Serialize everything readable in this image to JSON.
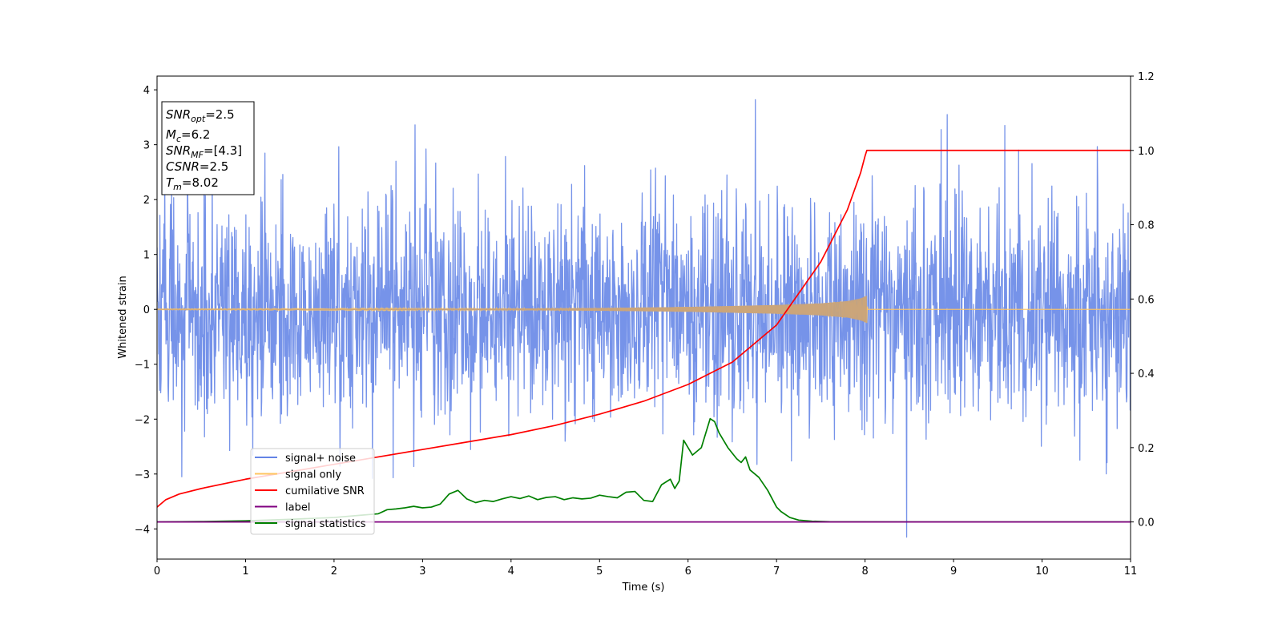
{
  "chart_data": {
    "type": "line",
    "xlabel": "Time (s)",
    "ylabel": "Whitened strain",
    "xlim": [
      0,
      11
    ],
    "ylim": [
      -4.55,
      4.25
    ],
    "y2lim": [
      -0.1,
      1.2
    ],
    "x_ticks": [
      "0",
      "1",
      "2",
      "3",
      "4",
      "5",
      "6",
      "7",
      "8",
      "9",
      "10",
      "11"
    ],
    "y_ticks": [
      "4",
      "3",
      "2",
      "1",
      "0",
      "−1",
      "−2",
      "−3",
      "−4"
    ],
    "y2_ticks": [
      "1.2",
      "1.0",
      "0.8",
      "0.6",
      "0.4",
      "0.2",
      "0.0"
    ],
    "grid": false,
    "legend_position": "lower-left",
    "annotation_box": {
      "lines": [
        {
          "base": "SNR",
          "sub": "opt",
          "rest": "=2.5"
        },
        {
          "base": "M",
          "sub": "c",
          "rest": "=6.2"
        },
        {
          "base": "SNR",
          "sub": "MF",
          "rest": "=[4.3]"
        },
        {
          "base": "CSNR",
          "sub": "",
          "rest": "=2.5"
        },
        {
          "base": "T",
          "sub": "m",
          "rest": "=8.02"
        }
      ]
    },
    "series": [
      {
        "name": "signal+ noise",
        "axis": "left",
        "color": "#4169E1",
        "opacity": 0.72,
        "description": "whitened noise with unit variance plus the chirp signal, sampled densely over 0–11 s",
        "noise_std": 1.0,
        "peak_max": 3.82,
        "peak_min": -4.15,
        "notable_spikes": [
          {
            "x": 6.76,
            "y": 3.82
          },
          {
            "x": 8.93,
            "y": 3.55
          },
          {
            "x": 9.58,
            "y": 3.35
          },
          {
            "x": 8.47,
            "y": -4.15
          },
          {
            "x": 0.28,
            "y": -3.05
          }
        ]
      },
      {
        "name": "signal only",
        "axis": "left",
        "color": "#FFC560",
        "description": "chirp signal growing in amplitude until merger time",
        "t_merger": 8.02,
        "amplitude_envelope": {
          "x": [
            0,
            2,
            4,
            5,
            6,
            7,
            7.5,
            7.8,
            7.95,
            8.02,
            8.03,
            11
          ],
          "y": [
            0.005,
            0.008,
            0.015,
            0.025,
            0.045,
            0.08,
            0.11,
            0.15,
            0.2,
            0.25,
            0,
            0
          ]
        }
      },
      {
        "name": "cumilative SNR",
        "axis": "right",
        "color": "#FF0000",
        "x": [
          0,
          0.1,
          0.25,
          0.5,
          1,
          1.5,
          2,
          2.5,
          3,
          3.5,
          4,
          4.5,
          5,
          5.5,
          6,
          6.5,
          7,
          7.5,
          7.8,
          7.95,
          8.0,
          8.02,
          8.5,
          9,
          10,
          11
        ],
        "y": [
          0.04,
          0.06,
          0.075,
          0.09,
          0.115,
          0.135,
          0.155,
          0.175,
          0.195,
          0.215,
          0.235,
          0.26,
          0.29,
          0.325,
          0.37,
          0.43,
          0.53,
          0.7,
          0.84,
          0.94,
          0.985,
          1.0,
          1.0,
          1.0,
          1.0,
          1.0
        ]
      },
      {
        "name": "label",
        "axis": "right",
        "color": "#800080",
        "x": [
          0,
          11
        ],
        "y": [
          0,
          0
        ]
      },
      {
        "name": "signal statistics",
        "axis": "right",
        "color": "#008000",
        "x": [
          0,
          0.5,
          1,
          1.5,
          2,
          2.3,
          2.5,
          2.6,
          2.7,
          2.8,
          2.9,
          3.0,
          3.1,
          3.2,
          3.3,
          3.4,
          3.5,
          3.6,
          3.7,
          3.8,
          3.9,
          4.0,
          4.1,
          4.2,
          4.3,
          4.4,
          4.5,
          4.6,
          4.7,
          4.8,
          4.9,
          5.0,
          5.1,
          5.2,
          5.3,
          5.4,
          5.5,
          5.6,
          5.7,
          5.8,
          5.85,
          5.9,
          5.95,
          6.05,
          6.15,
          6.25,
          6.3,
          6.35,
          6.45,
          6.55,
          6.6,
          6.65,
          6.7,
          6.75,
          6.8,
          6.9,
          7.0,
          7.05,
          7.15,
          7.25,
          7.4,
          7.6,
          8.0,
          9.0,
          10.0,
          11.0
        ],
        "y": [
          0.0,
          0.001,
          0.003,
          0.007,
          0.012,
          0.018,
          0.022,
          0.033,
          0.035,
          0.038,
          0.042,
          0.038,
          0.04,
          0.048,
          0.075,
          0.085,
          0.062,
          0.052,
          0.058,
          0.055,
          0.062,
          0.068,
          0.063,
          0.07,
          0.06,
          0.066,
          0.068,
          0.06,
          0.065,
          0.062,
          0.064,
          0.072,
          0.068,
          0.065,
          0.08,
          0.082,
          0.058,
          0.055,
          0.1,
          0.115,
          0.09,
          0.11,
          0.22,
          0.18,
          0.2,
          0.278,
          0.27,
          0.24,
          0.2,
          0.17,
          0.16,
          0.175,
          0.14,
          0.13,
          0.12,
          0.085,
          0.04,
          0.028,
          0.012,
          0.005,
          0.002,
          0.0005,
          0.0003,
          0.0,
          0.0,
          0.0
        ]
      }
    ]
  }
}
